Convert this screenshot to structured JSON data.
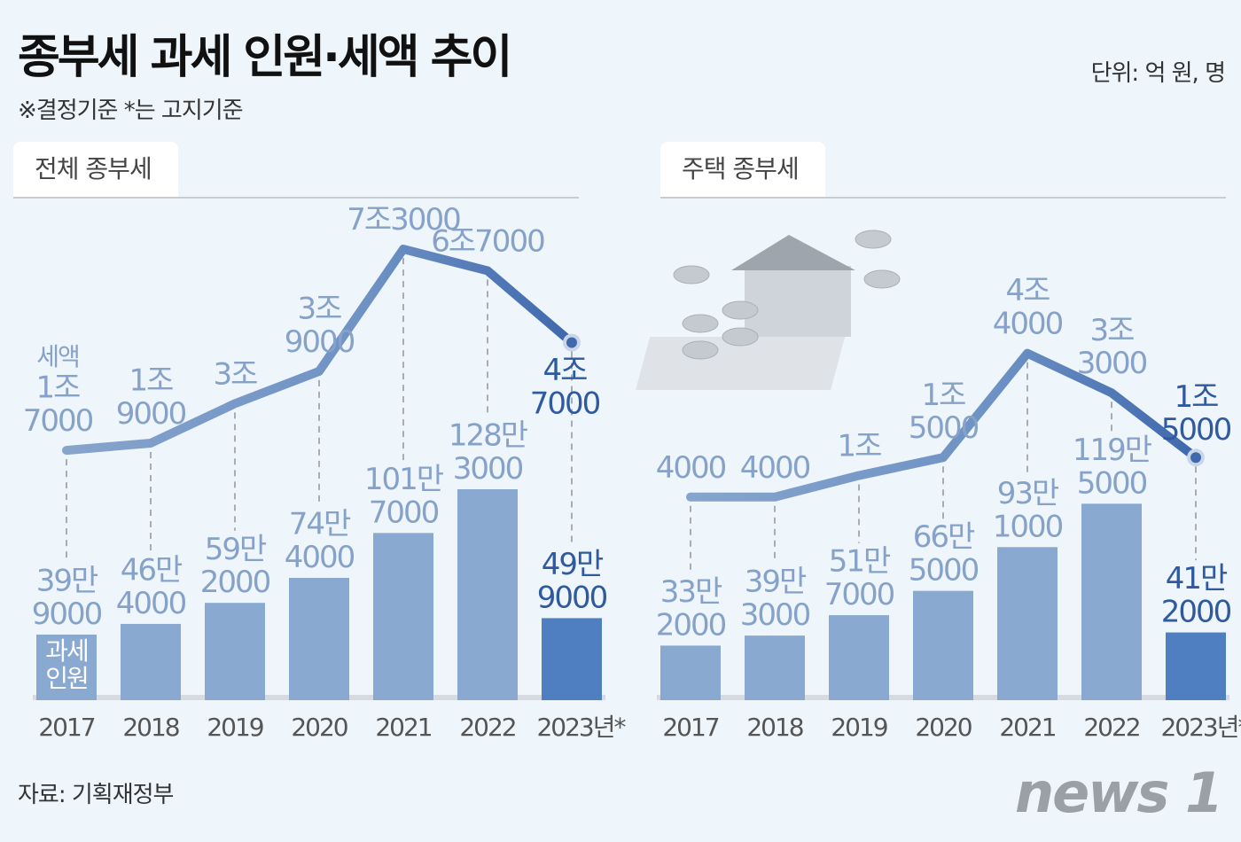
{
  "header": {
    "title": "종부세 과세 인원·세액 추이",
    "subtitle": "※결정기준 *는 고지기준",
    "unit": "단위: 억 원, 명"
  },
  "source": "자료: 기획재정부",
  "logo": "news1",
  "colors": {
    "bar": "#8aa9d1",
    "bar_last": "#4f7fc0",
    "line_start": "#86a4cc",
    "line_end": "#3f68ad",
    "label": "#86a2c8",
    "label_last": "#2f5aa0"
  },
  "chart_data": [
    {
      "type": "bar+line",
      "title": "전체 종부세",
      "categories": [
        "2017",
        "2018",
        "2019",
        "2020",
        "2021",
        "2022",
        "2023년*"
      ],
      "series": [
        {
          "name": "세액",
          "type": "line",
          "unit": "억 원",
          "values": [
            17000,
            19000,
            30000,
            39000,
            73000,
            67000,
            47000
          ],
          "labels": [
            "1조\n7000",
            "1조\n9000",
            "3조",
            "3조\n9000",
            "7조3000",
            "6조7000",
            "4조\n7000"
          ]
        },
        {
          "name": "과세 인원",
          "type": "bar",
          "unit": "명",
          "values": [
            399000,
            464000,
            592000,
            744000,
            1017000,
            1283000,
            499000
          ],
          "labels": [
            "39만\n9000",
            "46만\n4000",
            "59만\n2000",
            "74만\n4000",
            "101만\n7000",
            "128만\n3000",
            "49만\n9000"
          ]
        }
      ]
    },
    {
      "type": "bar+line",
      "title": "주택 종부세",
      "categories": [
        "2017",
        "2018",
        "2019",
        "2020",
        "2021",
        "2022",
        "2023년*"
      ],
      "series": [
        {
          "name": "세액",
          "type": "line",
          "unit": "억 원",
          "values": [
            4000,
            4000,
            10000,
            15000,
            44000,
            33000,
            15000
          ],
          "labels": [
            "4000",
            "4000",
            "1조",
            "1조\n5000",
            "4조\n4000",
            "3조\n3000",
            "1조\n5000"
          ]
        },
        {
          "name": "과세 인원",
          "type": "bar",
          "unit": "명",
          "values": [
            332000,
            393000,
            517000,
            665000,
            931000,
            1195000,
            412000
          ],
          "labels": [
            "33만\n2000",
            "39만\n3000",
            "51만\n7000",
            "66만\n5000",
            "93만\n1000",
            "119만\n5000",
            "41만\n2000"
          ]
        }
      ]
    }
  ]
}
